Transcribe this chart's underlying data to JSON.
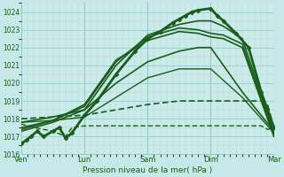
{
  "title": "Pression niveau de la mer( hPa )",
  "bg_color": "#c6e8e8",
  "plot_bg_color": "#cceaea",
  "grid_major_color": "#99cccc",
  "grid_minor_color": "#aaddcc",
  "line_color": "#1a5c1a",
  "ylim": [
    1016.0,
    1024.5
  ],
  "yticks": [
    1016,
    1017,
    1018,
    1019,
    1020,
    1021,
    1022,
    1023,
    1024
  ],
  "xtick_labels": [
    "Ven",
    "Lun",
    "Sam",
    "Dim",
    "Mar"
  ],
  "xtick_positions": [
    0,
    1,
    2,
    3,
    4
  ],
  "series": [
    {
      "x": [
        0.0,
        0.08,
        0.15,
        0.25,
        0.35,
        0.5,
        0.6,
        0.7,
        0.8,
        1.0,
        1.2,
        1.5,
        1.8,
        2.0,
        2.2,
        2.4,
        2.5,
        2.6,
        2.7,
        2.8,
        3.0,
        3.1,
        3.2,
        3.4,
        3.6,
        3.8,
        3.9,
        4.0
      ],
      "y": [
        1016.6,
        1016.8,
        1017.0,
        1017.3,
        1017.0,
        1017.3,
        1017.5,
        1016.9,
        1017.2,
        1018.2,
        1019.0,
        1020.5,
        1021.8,
        1022.5,
        1022.9,
        1023.4,
        1023.6,
        1023.8,
        1024.0,
        1024.1,
        1024.2,
        1023.8,
        1023.5,
        1022.8,
        1022.0,
        1019.5,
        1018.5,
        1017.5
      ],
      "lw": 2.0,
      "ls": "solid",
      "marker": "D",
      "ms": 2.5
    },
    {
      "x": [
        0.0,
        0.5,
        1.0,
        1.5,
        2.0,
        2.5,
        2.8,
        3.0,
        3.2,
        3.5,
        3.8,
        4.0
      ],
      "y": [
        1017.3,
        1017.8,
        1018.5,
        1021.0,
        1022.7,
        1023.3,
        1023.5,
        1023.5,
        1023.2,
        1022.5,
        1019.3,
        1017.2
      ],
      "lw": 1.2,
      "ls": "solid",
      "marker": "None",
      "ms": 0
    },
    {
      "x": [
        0.0,
        0.5,
        1.0,
        1.5,
        2.0,
        2.5,
        2.8,
        3.0,
        3.2,
        3.5,
        3.8,
        4.0
      ],
      "y": [
        1017.4,
        1017.9,
        1018.7,
        1021.2,
        1022.6,
        1023.1,
        1023.0,
        1022.8,
        1022.7,
        1022.2,
        1019.1,
        1017.1
      ],
      "lw": 1.2,
      "ls": "solid",
      "marker": "None",
      "ms": 0
    },
    {
      "x": [
        0.0,
        0.5,
        1.0,
        1.5,
        2.0,
        2.5,
        2.8,
        3.0,
        3.2,
        3.5,
        3.8,
        4.0
      ],
      "y": [
        1017.5,
        1017.9,
        1018.8,
        1021.3,
        1022.4,
        1022.9,
        1022.8,
        1022.6,
        1022.5,
        1022.0,
        1019.0,
        1017.0
      ],
      "lw": 1.2,
      "ls": "solid",
      "marker": "None",
      "ms": 0
    },
    {
      "x": [
        0.0,
        0.5,
        1.0,
        1.5,
        2.0,
        2.5,
        2.8,
        3.0,
        3.5,
        4.0
      ],
      "y": [
        1017.8,
        1018.1,
        1018.5,
        1020.0,
        1021.2,
        1021.8,
        1022.0,
        1022.0,
        1019.5,
        1017.3
      ],
      "lw": 1.2,
      "ls": "solid",
      "marker": "None",
      "ms": 0
    },
    {
      "x": [
        0.0,
        0.5,
        1.0,
        1.5,
        2.0,
        2.5,
        3.0,
        3.5,
        4.0
      ],
      "y": [
        1017.8,
        1017.9,
        1018.1,
        1019.2,
        1020.3,
        1020.8,
        1020.8,
        1019.2,
        1017.2
      ],
      "lw": 1.0,
      "ls": "solid",
      "marker": "None",
      "ms": 0
    },
    {
      "x": [
        0.0,
        0.5,
        1.0,
        1.5,
        2.0,
        2.5,
        3.0,
        3.5,
        3.8,
        3.9,
        4.0
      ],
      "y": [
        1018.0,
        1018.1,
        1018.2,
        1018.5,
        1018.8,
        1019.0,
        1019.0,
        1019.0,
        1019.0,
        1018.8,
        1017.5
      ],
      "lw": 1.2,
      "ls": "--",
      "marker": "None",
      "ms": 0
    },
    {
      "x": [
        0.0,
        0.2,
        0.5,
        0.7,
        0.8,
        1.0,
        1.5,
        2.0,
        2.5,
        3.0,
        3.5,
        3.8,
        3.9,
        4.0
      ],
      "y": [
        1017.7,
        1017.5,
        1017.3,
        1017.0,
        1017.5,
        1017.6,
        1017.6,
        1017.6,
        1017.6,
        1017.6,
        1017.6,
        1017.6,
        1017.4,
        1017.5
      ],
      "lw": 1.0,
      "ls": "--",
      "marker": "None",
      "ms": 0
    }
  ]
}
